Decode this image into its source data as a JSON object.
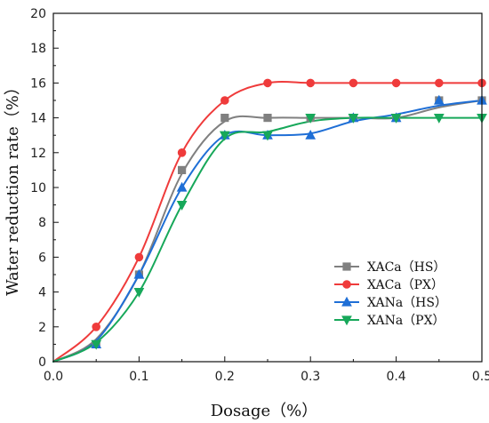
{
  "chart_data": {
    "type": "line",
    "xlabel": "Dosage（%）",
    "ylabel": "Water reduction rate（%）",
    "xlim": [
      0,
      0.5
    ],
    "ylim": [
      0,
      20
    ],
    "xticks": [
      "0.0",
      "0.1",
      "0.2",
      "0.3",
      "0.4",
      "0.5"
    ],
    "yticks": [
      "0",
      "2",
      "4",
      "6",
      "8",
      "10",
      "12",
      "14",
      "16",
      "18",
      "20"
    ],
    "legend_position": "bottom-right",
    "series": [
      {
        "name": "XACa（HS）",
        "color": "#808080",
        "marker": "square",
        "x": [
          0.05,
          0.1,
          0.15,
          0.2,
          0.25,
          0.3,
          0.35,
          0.4,
          0.45,
          0.5
        ],
        "y": [
          1,
          5,
          11,
          14,
          14,
          14,
          14,
          14,
          15,
          15
        ]
      },
      {
        "name": "XACa（PX）",
        "color": "#ef3b3b",
        "marker": "circle",
        "x": [
          0.05,
          0.1,
          0.15,
          0.2,
          0.25,
          0.3,
          0.35,
          0.4,
          0.45,
          0.5
        ],
        "y": [
          2,
          6,
          12,
          15,
          16,
          16,
          16,
          16,
          16,
          16
        ]
      },
      {
        "name": "XANa（HS）",
        "color": "#1f6fd6",
        "marker": "triangle-up",
        "x": [
          0.05,
          0.1,
          0.15,
          0.2,
          0.25,
          0.3,
          0.35,
          0.4,
          0.45,
          0.5
        ],
        "y": [
          1,
          5,
          10,
          13,
          13,
          13,
          14,
          14,
          15,
          15
        ]
      },
      {
        "name": "XANa（PX）",
        "color": "#17a85a",
        "marker": "triangle-down",
        "x": [
          0.05,
          0.1,
          0.15,
          0.2,
          0.25,
          0.3,
          0.35,
          0.4,
          0.45,
          0.5
        ],
        "y": [
          1,
          4,
          9,
          13,
          13,
          14,
          14,
          14,
          14,
          14
        ]
      }
    ],
    "curves": [
      {
        "x": [
          0,
          0.05,
          0.1,
          0.15,
          0.2,
          0.25,
          0.3,
          0.35,
          0.4,
          0.45,
          0.5
        ],
        "y": [
          0,
          1.3,
          5.0,
          10.8,
          13.8,
          14.0,
          14.0,
          14.0,
          14.0,
          14.6,
          15.0
        ]
      },
      {
        "x": [
          0,
          0.05,
          0.1,
          0.15,
          0.2,
          0.25,
          0.3,
          0.35,
          0.4,
          0.45,
          0.5
        ],
        "y": [
          0,
          2.0,
          6.0,
          12.0,
          15.0,
          16.0,
          16.0,
          16.0,
          16.0,
          16.0,
          16.0
        ]
      },
      {
        "x": [
          0,
          0.05,
          0.1,
          0.15,
          0.2,
          0.25,
          0.3,
          0.35,
          0.4,
          0.45,
          0.5
        ],
        "y": [
          0,
          1.2,
          5.0,
          10.0,
          13.0,
          13.0,
          13.1,
          13.8,
          14.2,
          14.7,
          15.0
        ]
      },
      {
        "x": [
          0,
          0.05,
          0.1,
          0.15,
          0.2,
          0.25,
          0.3,
          0.35,
          0.4,
          0.45,
          0.5
        ],
        "y": [
          0,
          1.1,
          4.0,
          9.0,
          12.8,
          13.2,
          13.8,
          14.0,
          14.0,
          14.0,
          14.0
        ]
      }
    ]
  }
}
